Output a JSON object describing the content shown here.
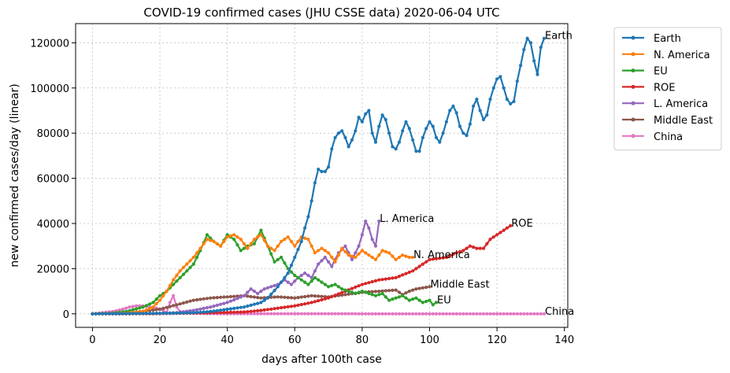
{
  "chart_data": {
    "type": "line",
    "title": "COVID-19 confirmed cases (JHU CSSE data) 2020-06-04 UTC",
    "xlabel": "days after 100th case",
    "ylabel": "new confirmed cases/day (linear)",
    "xlim": [
      -5,
      141
    ],
    "ylim": [
      -6000,
      128500
    ],
    "xticks": [
      0,
      20,
      40,
      60,
      80,
      100,
      120,
      140
    ],
    "yticks": [
      0,
      20000,
      40000,
      60000,
      80000,
      100000,
      120000
    ],
    "grid": true,
    "legend_position": "outside-top-right",
    "series": [
      {
        "name": "Earth",
        "color": "#1f77b4",
        "label": "Earth",
        "points": [
          [
            0,
            0
          ],
          [
            10,
            100
          ],
          [
            20,
            200
          ],
          [
            25,
            300
          ],
          [
            30,
            500
          ],
          [
            35,
            1000
          ],
          [
            40,
            2000
          ],
          [
            45,
            3000
          ],
          [
            50,
            5000
          ],
          [
            52,
            7000
          ],
          [
            55,
            12000
          ],
          [
            58,
            18000
          ],
          [
            60,
            25000
          ],
          [
            62,
            32000
          ],
          [
            63,
            38000
          ],
          [
            64,
            43000
          ],
          [
            65,
            50000
          ],
          [
            66,
            58000
          ],
          [
            67,
            64000
          ],
          [
            68,
            63000
          ],
          [
            69,
            63000
          ],
          [
            70,
            65000
          ],
          [
            71,
            73000
          ],
          [
            72,
            78000
          ],
          [
            73,
            80000
          ],
          [
            74,
            81000
          ],
          [
            75,
            78000
          ],
          [
            76,
            74000
          ],
          [
            77,
            77000
          ],
          [
            78,
            81000
          ],
          [
            79,
            87000
          ],
          [
            80,
            85000
          ],
          [
            81,
            88500
          ],
          [
            82,
            90000
          ],
          [
            83,
            80000
          ],
          [
            84,
            76000
          ],
          [
            85,
            83000
          ],
          [
            86,
            88000
          ],
          [
            87,
            86000
          ],
          [
            88,
            80000
          ],
          [
            89,
            74000
          ],
          [
            90,
            73000
          ],
          [
            91,
            76000
          ],
          [
            92,
            81000
          ],
          [
            93,
            85000
          ],
          [
            94,
            82000
          ],
          [
            95,
            77000
          ],
          [
            96,
            72000
          ],
          [
            97,
            72000
          ],
          [
            98,
            78000
          ],
          [
            99,
            82000
          ],
          [
            100,
            85000
          ],
          [
            101,
            83000
          ],
          [
            102,
            78000
          ],
          [
            103,
            76000
          ],
          [
            104,
            80000
          ],
          [
            105,
            85000
          ],
          [
            106,
            90000
          ],
          [
            107,
            92000
          ],
          [
            108,
            89000
          ],
          [
            109,
            83000
          ],
          [
            110,
            80000
          ],
          [
            111,
            79000
          ],
          [
            112,
            84000
          ],
          [
            113,
            92000
          ],
          [
            114,
            95000
          ],
          [
            115,
            90000
          ],
          [
            116,
            86000
          ],
          [
            117,
            88000
          ],
          [
            118,
            95000
          ],
          [
            119,
            100000
          ],
          [
            120,
            104000
          ],
          [
            121,
            105000
          ],
          [
            122,
            100000
          ],
          [
            123,
            95000
          ],
          [
            124,
            93000
          ],
          [
            125,
            94000
          ],
          [
            126,
            103000
          ],
          [
            127,
            110000
          ],
          [
            128,
            117000
          ],
          [
            129,
            122000
          ],
          [
            130,
            120000
          ],
          [
            131,
            112000
          ],
          [
            132,
            106000
          ],
          [
            133,
            118000
          ],
          [
            134,
            122000
          ]
        ]
      },
      {
        "name": "N. America",
        "color": "#ff7f0e",
        "label": "N. America",
        "points": [
          [
            0,
            0
          ],
          [
            5,
            100
          ],
          [
            10,
            300
          ],
          [
            15,
            1000
          ],
          [
            18,
            3000
          ],
          [
            20,
            6000
          ],
          [
            22,
            10000
          ],
          [
            24,
            15000
          ],
          [
            26,
            19000
          ],
          [
            28,
            22000
          ],
          [
            30,
            25000
          ],
          [
            32,
            29000
          ],
          [
            34,
            33000
          ],
          [
            36,
            32000
          ],
          [
            38,
            30000
          ],
          [
            40,
            34000
          ],
          [
            42,
            35000
          ],
          [
            44,
            33000
          ],
          [
            46,
            29000
          ],
          [
            48,
            33000
          ],
          [
            50,
            35000
          ],
          [
            52,
            30000
          ],
          [
            54,
            28000
          ],
          [
            56,
            32000
          ],
          [
            58,
            34000
          ],
          [
            60,
            30000
          ],
          [
            62,
            34000
          ],
          [
            64,
            33000
          ],
          [
            66,
            27000
          ],
          [
            68,
            29000
          ],
          [
            70,
            27000
          ],
          [
            72,
            23000
          ],
          [
            74,
            29000
          ],
          [
            76,
            26000
          ],
          [
            78,
            25000
          ],
          [
            80,
            28000
          ],
          [
            82,
            26000
          ],
          [
            84,
            24000
          ],
          [
            86,
            28000
          ],
          [
            88,
            27000
          ],
          [
            90,
            24000
          ],
          [
            92,
            26000
          ],
          [
            94,
            25000
          ],
          [
            95,
            25000
          ]
        ]
      },
      {
        "name": "EU",
        "color": "#2ca02c",
        "label": "EU",
        "points": [
          [
            0,
            0
          ],
          [
            5,
            200
          ],
          [
            10,
            1000
          ],
          [
            15,
            3000
          ],
          [
            18,
            5000
          ],
          [
            20,
            8000
          ],
          [
            22,
            10000
          ],
          [
            24,
            13000
          ],
          [
            26,
            16000
          ],
          [
            28,
            19000
          ],
          [
            30,
            22000
          ],
          [
            32,
            28000
          ],
          [
            34,
            35000
          ],
          [
            36,
            32000
          ],
          [
            38,
            30000
          ],
          [
            40,
            35000
          ],
          [
            42,
            33000
          ],
          [
            44,
            28000
          ],
          [
            46,
            30000
          ],
          [
            48,
            31000
          ],
          [
            50,
            37000
          ],
          [
            52,
            30000
          ],
          [
            54,
            23000
          ],
          [
            56,
            25000
          ],
          [
            58,
            20000
          ],
          [
            60,
            17000
          ],
          [
            62,
            15000
          ],
          [
            64,
            13000
          ],
          [
            66,
            16000
          ],
          [
            68,
            14000
          ],
          [
            70,
            12000
          ],
          [
            72,
            13000
          ],
          [
            74,
            11000
          ],
          [
            76,
            10000
          ],
          [
            78,
            9000
          ],
          [
            80,
            10000
          ],
          [
            82,
            9000
          ],
          [
            84,
            8000
          ],
          [
            86,
            9000
          ],
          [
            88,
            6000
          ],
          [
            90,
            7000
          ],
          [
            92,
            8000
          ],
          [
            94,
            6000
          ],
          [
            96,
            7000
          ],
          [
            98,
            5000
          ],
          [
            100,
            6000
          ],
          [
            101,
            4000
          ],
          [
            102,
            5000
          ]
        ]
      },
      {
        "name": "ROE",
        "color": "#d62728",
        "label": "ROE",
        "points": [
          [
            0,
            0
          ],
          [
            10,
            0
          ],
          [
            20,
            100
          ],
          [
            30,
            300
          ],
          [
            40,
            600
          ],
          [
            45,
            800
          ],
          [
            50,
            1500
          ],
          [
            55,
            2500
          ],
          [
            60,
            3500
          ],
          [
            65,
            5000
          ],
          [
            70,
            7000
          ],
          [
            75,
            10000
          ],
          [
            80,
            13000
          ],
          [
            85,
            15000
          ],
          [
            90,
            16000
          ],
          [
            95,
            19000
          ],
          [
            100,
            24000
          ],
          [
            105,
            25000
          ],
          [
            108,
            27000
          ],
          [
            110,
            28000
          ],
          [
            112,
            30000
          ],
          [
            114,
            29000
          ],
          [
            116,
            29000
          ],
          [
            118,
            33000
          ],
          [
            120,
            35000
          ],
          [
            122,
            37000
          ],
          [
            124,
            39000
          ]
        ]
      },
      {
        "name": "L. America",
        "color": "#9467bd",
        "label": "L. America",
        "points": [
          [
            0,
            0
          ],
          [
            10,
            100
          ],
          [
            20,
            200
          ],
          [
            25,
            500
          ],
          [
            30,
            1500
          ],
          [
            35,
            3000
          ],
          [
            40,
            5000
          ],
          [
            45,
            8000
          ],
          [
            47,
            11000
          ],
          [
            49,
            9000
          ],
          [
            51,
            11000
          ],
          [
            53,
            12000
          ],
          [
            55,
            13000
          ],
          [
            57,
            15000
          ],
          [
            59,
            13000
          ],
          [
            61,
            16000
          ],
          [
            63,
            18000
          ],
          [
            65,
            16000
          ],
          [
            67,
            22000
          ],
          [
            69,
            25000
          ],
          [
            71,
            21000
          ],
          [
            73,
            27000
          ],
          [
            75,
            30000
          ],
          [
            77,
            24000
          ],
          [
            79,
            30000
          ],
          [
            80,
            35000
          ],
          [
            81,
            41000
          ],
          [
            82,
            38000
          ],
          [
            83,
            33000
          ],
          [
            84,
            30000
          ],
          [
            85,
            41000
          ]
        ]
      },
      {
        "name": "Middle East",
        "color": "#8c564b",
        "label": "Middle East",
        "points": [
          [
            0,
            0
          ],
          [
            10,
            300
          ],
          [
            20,
            2000
          ],
          [
            25,
            4000
          ],
          [
            30,
            6000
          ],
          [
            35,
            7000
          ],
          [
            40,
            7500
          ],
          [
            45,
            8000
          ],
          [
            50,
            7000
          ],
          [
            55,
            7500
          ],
          [
            60,
            7000
          ],
          [
            65,
            8000
          ],
          [
            70,
            7500
          ],
          [
            75,
            8500
          ],
          [
            80,
            9500
          ],
          [
            85,
            10000
          ],
          [
            90,
            10500
          ],
          [
            92,
            8500
          ],
          [
            94,
            10000
          ],
          [
            96,
            11000
          ],
          [
            98,
            11500
          ],
          [
            100,
            12000
          ]
        ]
      },
      {
        "name": "China",
        "color": "#e377c2",
        "label": "China",
        "points": [
          [
            0,
            0
          ],
          [
            3,
            500
          ],
          [
            6,
            1000
          ],
          [
            9,
            2000
          ],
          [
            11,
            3000
          ],
          [
            13,
            3500
          ],
          [
            15,
            3500
          ],
          [
            17,
            3000
          ],
          [
            19,
            2500
          ],
          [
            21,
            1500
          ],
          [
            22,
            500
          ],
          [
            23,
            5000
          ],
          [
            24,
            8000
          ],
          [
            25,
            3000
          ],
          [
            26,
            1000
          ],
          [
            28,
            500
          ],
          [
            30,
            200
          ],
          [
            35,
            100
          ],
          [
            40,
            50
          ],
          [
            50,
            30
          ],
          [
            60,
            20
          ],
          [
            80,
            10
          ],
          [
            100,
            5
          ],
          [
            120,
            5
          ],
          [
            134,
            5
          ]
        ]
      }
    ]
  }
}
